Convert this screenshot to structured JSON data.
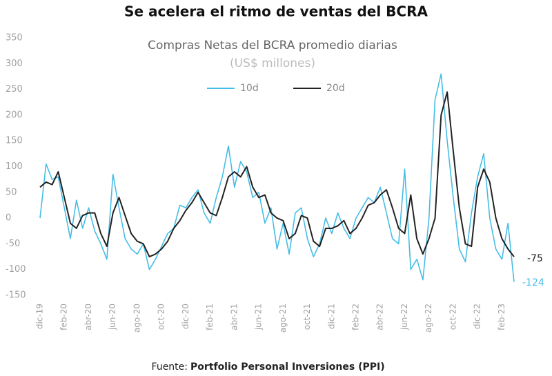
{
  "chart_data": {
    "type": "line",
    "title": "Se acelera el ritmo de ventas del BCRA",
    "subtitle": "Compras Netas del BCRA promedio diarias",
    "units": "(US$ millones)",
    "source": {
      "prefix": "Fuente:",
      "name": "Portfolio Personal Inversiones (PPI)"
    },
    "categories": [
      "dic-19",
      null,
      null,
      null,
      "feb-20",
      null,
      null,
      null,
      "abr-20",
      null,
      null,
      null,
      "jun-20",
      null,
      null,
      null,
      "ago-20",
      null,
      null,
      null,
      "oct-20",
      null,
      null,
      null,
      "dic-20",
      null,
      null,
      null,
      "feb-21",
      null,
      null,
      null,
      "abr-21",
      null,
      null,
      null,
      "jun-21",
      null,
      null,
      null,
      "ago-21",
      null,
      null,
      null,
      "oct-21",
      null,
      null,
      null,
      "dic-21",
      null,
      null,
      null,
      "feb-22",
      null,
      null,
      null,
      "abr-22",
      null,
      null,
      null,
      "jun-22",
      null,
      null,
      null,
      "ago-22",
      null,
      null,
      null,
      "oct-22",
      null,
      null,
      null,
      "dic-22",
      null,
      null,
      null,
      "feb-23",
      null,
      null
    ],
    "series": [
      {
        "name": "10d",
        "color": "#45bde6",
        "values": [
          0,
          105,
          75,
          80,
          20,
          -40,
          35,
          -20,
          20,
          -25,
          -50,
          -80,
          85,
          20,
          -40,
          -60,
          -70,
          -50,
          -100,
          -80,
          -55,
          -30,
          -20,
          25,
          20,
          40,
          55,
          10,
          -10,
          40,
          80,
          140,
          60,
          110,
          90,
          40,
          50,
          -10,
          20,
          -60,
          -10,
          -70,
          10,
          20,
          -40,
          -75,
          -50,
          0,
          -30,
          10,
          -20,
          -40,
          0,
          20,
          40,
          30,
          60,
          10,
          -40,
          -50,
          95,
          -100,
          -80,
          -120,
          0,
          230,
          280,
          150,
          40,
          -60,
          -85,
          10,
          80,
          125,
          0,
          -60,
          -80,
          -10,
          -124
        ]
      },
      {
        "name": "20d",
        "color": "#222222",
        "values": [
          60,
          70,
          65,
          90,
          40,
          -10,
          -20,
          5,
          10,
          10,
          -30,
          -55,
          10,
          40,
          5,
          -30,
          -45,
          -50,
          -75,
          -70,
          -60,
          -45,
          -20,
          -5,
          15,
          30,
          50,
          30,
          10,
          5,
          40,
          80,
          90,
          80,
          100,
          60,
          40,
          45,
          10,
          0,
          -5,
          -40,
          -30,
          5,
          0,
          -45,
          -55,
          -20,
          -20,
          -15,
          -5,
          -30,
          -20,
          0,
          25,
          30,
          45,
          55,
          20,
          -20,
          -30,
          45,
          -40,
          -70,
          -40,
          0,
          200,
          245,
          130,
          20,
          -50,
          -55,
          60,
          95,
          70,
          0,
          -40,
          -60,
          -75
        ]
      }
    ],
    "ylim": [
      -150,
      350
    ],
    "yticks": [
      -150,
      -100,
      -50,
      0,
      50,
      100,
      150,
      200,
      250,
      300,
      350
    ],
    "grid": false,
    "legend": "top"
  }
}
